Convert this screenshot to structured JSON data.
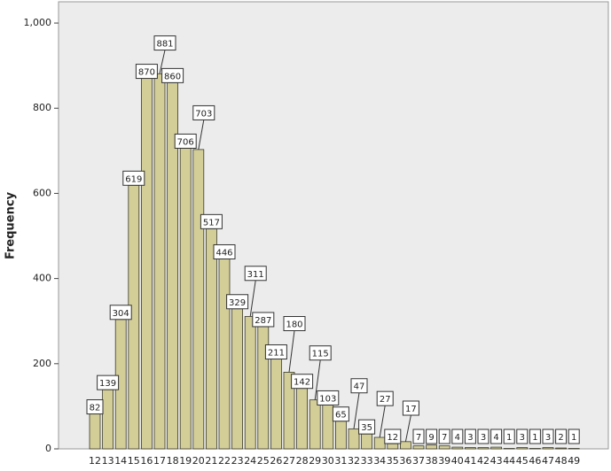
{
  "chart_data": {
    "type": "bar",
    "y_label": "Frequency",
    "categories": [
      "12",
      "13",
      "14",
      "15",
      "16",
      "17",
      "18",
      "19",
      "20",
      "21",
      "22",
      "23",
      "24",
      "25",
      "26",
      "27",
      "28",
      "29",
      "30",
      "31",
      "32",
      "33",
      "34",
      "35",
      "36",
      "37",
      "38",
      "39",
      "40",
      "41",
      "42",
      "43",
      "44",
      "45",
      "46",
      "47",
      "48",
      "49"
    ],
    "values": [
      82,
      139,
      304,
      619,
      870,
      881,
      860,
      706,
      703,
      517,
      446,
      329,
      311,
      287,
      211,
      180,
      142,
      115,
      103,
      65,
      47,
      35,
      27,
      12,
      17,
      7,
      9,
      7,
      4,
      3,
      3,
      4,
      1,
      3,
      1,
      3,
      2,
      1
    ],
    "color": "#d3cd98",
    "ylim": [
      0,
      1050
    ],
    "yticks": [
      0,
      200,
      400,
      600,
      800,
      {
        "value": 1000,
        "label": "1,000"
      }
    ]
  }
}
